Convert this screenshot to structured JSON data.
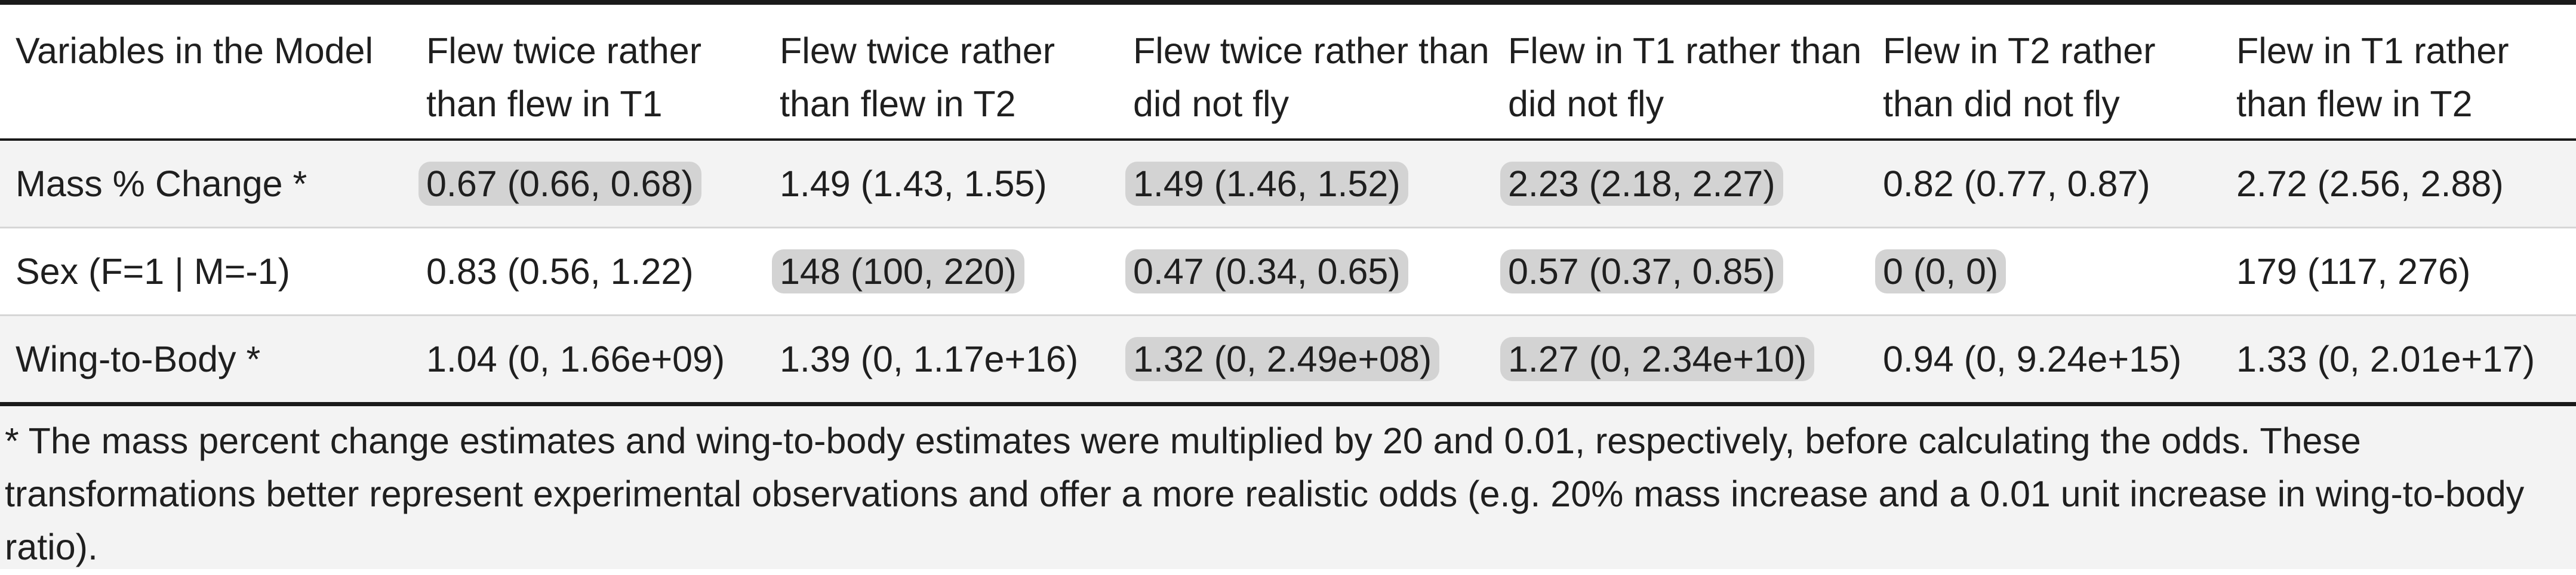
{
  "table": {
    "headers": [
      "Variables in the Model",
      "Flew twice rather than flew in T1",
      "Flew twice rather than flew in T2",
      "Flew twice rather than did not fly",
      "Flew in T1 rather than did not fly",
      "Flew in T2 rather than did not fly",
      "Flew in T1 rather than flew in T2"
    ],
    "rows": [
      {
        "label": "Mass % Change *",
        "cells": [
          {
            "text": "0.67 (0.66, 0.68)",
            "highlighted": true
          },
          {
            "text": "1.49 (1.43, 1.55)",
            "highlighted": false
          },
          {
            "text": "1.49 (1.46, 1.52)",
            "highlighted": true
          },
          {
            "text": "2.23 (2.18, 2.27)",
            "highlighted": true
          },
          {
            "text": "0.82 (0.77, 0.87)",
            "highlighted": false
          },
          {
            "text": "2.72 (2.56, 2.88)",
            "highlighted": false
          }
        ]
      },
      {
        "label": "Sex (F=1 | M=-1)",
        "cells": [
          {
            "text": "0.83 (0.56, 1.22)",
            "highlighted": false
          },
          {
            "text": "148 (100, 220)",
            "highlighted": true
          },
          {
            "text": "0.47 (0.34, 0.65)",
            "highlighted": true
          },
          {
            "text": "0.57 (0.37, 0.85)",
            "highlighted": true
          },
          {
            "text": "0 (0, 0)",
            "highlighted": true
          },
          {
            "text": "179 (117, 276)",
            "highlighted": false
          }
        ]
      },
      {
        "label": "Wing-to-Body *",
        "cells": [
          {
            "text": "1.04 (0, 1.66e+09)",
            "highlighted": false
          },
          {
            "text": "1.39 (0, 1.17e+16)",
            "highlighted": false
          },
          {
            "text": "1.32 (0, 2.49e+08)",
            "highlighted": true
          },
          {
            "text": "1.27 (0, 2.34e+10)",
            "highlighted": true
          },
          {
            "text": "0.94 (0, 9.24e+15)",
            "highlighted": false
          },
          {
            "text": "1.33 (0, 2.01e+17)",
            "highlighted": false
          }
        ]
      }
    ],
    "footnote": "* The mass percent change estimates and wing-to-body estimates were multiplied by 20 and 0.01, respectively, before calculating the odds. These transformations better represent experimental observations and offer a more realistic odds (e.g. 20% mass increase and a 0.01 unit increase in wing-to-body ratio)."
  },
  "colors": {
    "highlight": "#d3d3d3",
    "stripe": "#f3f3f3",
    "rule": "#1a1a1a"
  }
}
